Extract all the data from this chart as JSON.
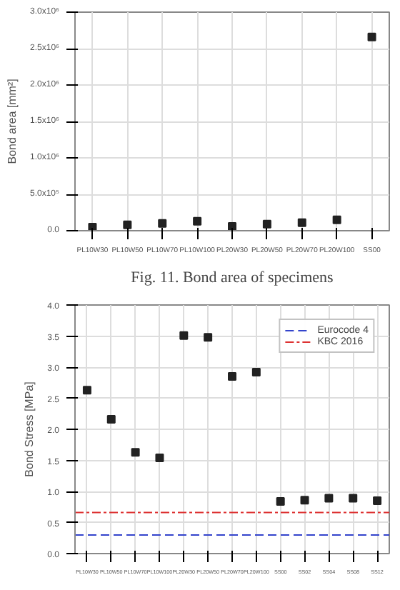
{
  "chart_data": [
    {
      "type": "scatter",
      "ylabel": "Bond area [mm²]",
      "annotations": [
        "Fig. 11. Bond area of specimens"
      ],
      "categories": [
        "PL10W30",
        "PL10W50",
        "PL10W70",
        "PL10W100",
        "PL20W30",
        "PL20W50",
        "PL20W70",
        "PL20W100",
        "SS00"
      ],
      "series": [
        {
          "color": "#222222",
          "values": [
            50000,
            80000,
            100000,
            130000,
            60000,
            90000,
            110000,
            150000,
            2660000
          ]
        }
      ],
      "ylim": [
        0,
        3000000
      ],
      "yticks": [
        {
          "value": 0,
          "label": "0.0"
        },
        {
          "value": 500000,
          "label": "5.0x10⁵"
        },
        {
          "value": 1000000,
          "label": "1.0x10⁶"
        },
        {
          "value": 1500000,
          "label": "1.5x10⁶"
        },
        {
          "value": 2000000,
          "label": "2.0x10⁶"
        },
        {
          "value": 2500000,
          "label": "2.5x10⁶"
        },
        {
          "value": 3000000,
          "label": "3.0x10⁶"
        }
      ],
      "grid": true,
      "marker": "square"
    },
    {
      "type": "scatter",
      "ylabel": "Bond Stress [MPa]",
      "categories": [
        "PL10W30",
        "PL10W50",
        "PL10W70",
        "PL10W100",
        "PL20W30",
        "PL20W50",
        "PL20W70",
        "PL20W100",
        "SS00",
        "SS02",
        "SS04",
        "SS08",
        "SS12"
      ],
      "series": [
        {
          "color": "#222222",
          "values": [
            2.63,
            2.16,
            1.63,
            1.54,
            3.51,
            3.48,
            2.85,
            2.92,
            0.84,
            0.86,
            0.89,
            0.89,
            0.85
          ]
        }
      ],
      "ylim": [
        0,
        4.0
      ],
      "yticks": [
        {
          "value": 0,
          "label": "0.0"
        },
        {
          "value": 0.5,
          "label": "0.5"
        },
        {
          "value": 1,
          "label": "1.0"
        },
        {
          "value": 1.5,
          "label": "1.5"
        },
        {
          "value": 2,
          "label": "2.0"
        },
        {
          "value": 2.5,
          "label": "2.5"
        },
        {
          "value": 3,
          "label": "3.0"
        },
        {
          "value": 3.5,
          "label": "3.5"
        },
        {
          "value": 4,
          "label": "4.0"
        }
      ],
      "ref_lines": [
        {
          "axis": "y",
          "value": 0.3,
          "label": "Eurocode 4",
          "color": "#3344cc",
          "line_style": "dashed"
        },
        {
          "axis": "y",
          "value": 0.66,
          "label": "KBC 2016",
          "color": "#dd3333",
          "line_style": "dashdot"
        }
      ],
      "grid": true,
      "marker": "square",
      "legend": "top right"
    }
  ]
}
